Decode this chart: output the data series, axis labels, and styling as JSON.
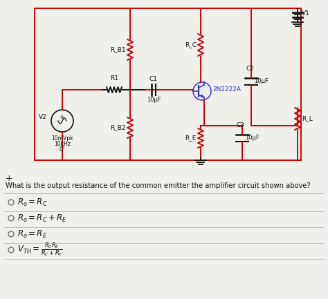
{
  "bg_color": "#f0f0eb",
  "circuit_color": "#cc0000",
  "transistor_color": "#3333cc",
  "black": "#111111",
  "gray": "#aaaaaa",
  "title_question": "What is the output resistance of the common emitter the amplifier circuit shown above?",
  "plus_sign": "+",
  "V1": "V1",
  "V2": "V2",
  "R1": "R1",
  "R_B1": "R_B1",
  "R_B2": "R_B2",
  "R_C": "R_C",
  "R_E": "R_E",
  "R_L": "R_L",
  "C1": "C1",
  "C2": "C2",
  "C3": "C3",
  "transistor": "2N2222A",
  "V2_val1": "10mVpk",
  "V2_val2": "10kHz",
  "V2_val3": "0°",
  "C1_val": "10μF",
  "C2_val": "10μF",
  "C3_val": "10μF",
  "opt1": "$R_o = R_C$",
  "opt2": "$R_o = R_C + R_E$",
  "opt3": "$R_o = R_E$",
  "opt4": "$V_{TH} = \\frac{R_C R_E}{R_C + R_E}$"
}
